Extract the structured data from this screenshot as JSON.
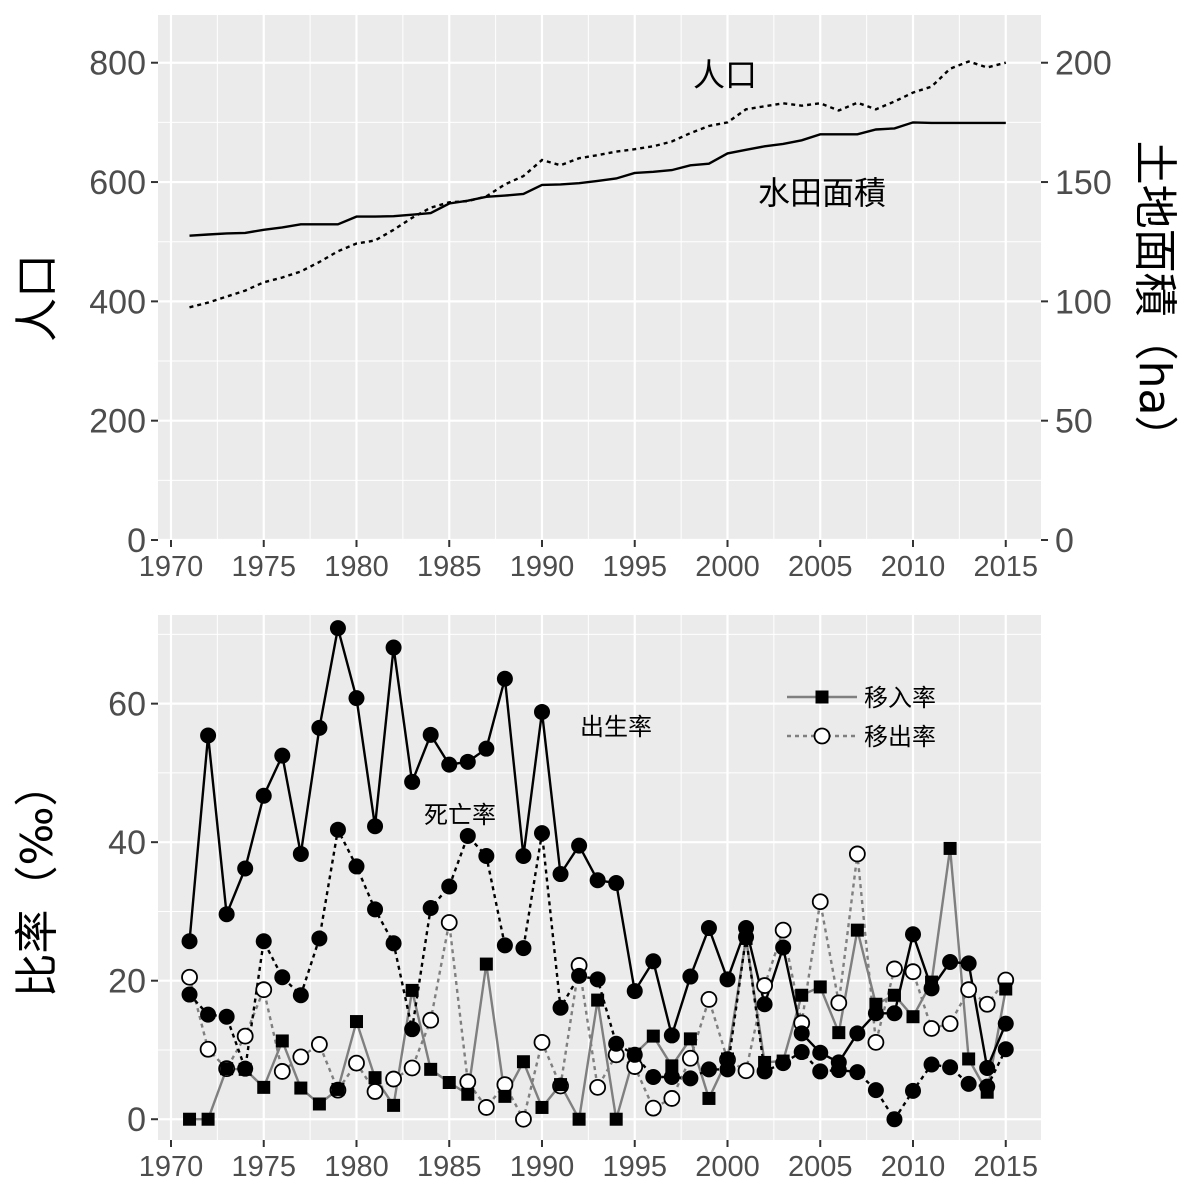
{
  "colors": {
    "panel_bg": "#ebebeb",
    "grid": "#ffffff",
    "tick_text": "#4d4d4d",
    "black": "#000000",
    "gray": "#7f7f7f"
  },
  "chart_data": [
    {
      "type": "line",
      "x_ticks": [
        "1970",
        "1975",
        "1980",
        "1985",
        "1990",
        "1995",
        "2000",
        "2005",
        "2010",
        "2015"
      ],
      "y_left_label": "人口",
      "y_left_ticks": [
        "0",
        "200",
        "400",
        "600",
        "800"
      ],
      "y_left_lim": [
        0,
        880
      ],
      "y_right_label": "土地面積（ha）",
      "y_right_ticks": [
        "0",
        "50",
        "100",
        "150",
        "200"
      ],
      "y_right_lim": [
        0,
        220
      ],
      "x_lim": [
        1969.3,
        1967.9
      ],
      "grid": true,
      "annotations": [
        {
          "text": "人口"
        },
        {
          "text": "水田面積"
        }
      ],
      "series": [
        {
          "name": "人口",
          "axis": "left",
          "style": "dotted",
          "x": [
            1971,
            1972,
            1973,
            1974,
            1975,
            1976,
            1977,
            1978,
            1979,
            1980,
            1981,
            1982,
            1983,
            1984,
            1985,
            1986,
            1987,
            1988,
            1989,
            1990,
            1991,
            1992,
            1993,
            1994,
            1995,
            1996,
            1997,
            1998,
            1999,
            2000,
            2001,
            2002,
            2003,
            2004,
            2005,
            2006,
            2007,
            2008,
            2009,
            2010,
            2011,
            2012,
            2013,
            2014,
            2015
          ],
          "values": [
            390,
            398,
            408,
            418,
            432,
            440,
            450,
            466,
            484,
            497,
            502,
            520,
            540,
            557,
            566,
            568,
            576,
            596,
            610,
            637,
            628,
            640,
            645,
            651,
            655,
            660,
            668,
            682,
            694,
            700,
            722,
            727,
            732,
            728,
            732,
            720,
            733,
            722,
            735,
            750,
            760,
            790,
            802,
            792,
            800
          ]
        },
        {
          "name": "水田面積",
          "axis": "right",
          "style": "solid",
          "x": [
            1971,
            1972,
            1973,
            1974,
            1975,
            1976,
            1977,
            1978,
            1979,
            1980,
            1981,
            1982,
            1983,
            1984,
            1985,
            1986,
            1987,
            1988,
            1989,
            1990,
            1991,
            1992,
            1993,
            1994,
            1995,
            1996,
            1997,
            1998,
            1999,
            2000,
            2001,
            2002,
            2003,
            2004,
            2005,
            2006,
            2007,
            2008,
            2009,
            2010,
            2011,
            2012,
            2013,
            2014,
            2015
          ],
          "values": [
            127.5,
            128,
            128.5,
            128.7,
            130,
            131,
            132.3,
            132.3,
            132.3,
            135.5,
            135.5,
            135.7,
            136.3,
            137,
            141,
            142.2,
            143.8,
            144.3,
            145,
            148.8,
            149,
            149.5,
            150.5,
            151.5,
            153.8,
            154.3,
            155,
            157,
            157.7,
            162,
            163.5,
            165,
            166,
            167.5,
            170,
            170,
            170,
            172,
            172.5,
            175,
            174.8,
            174.8,
            174.8,
            174.8,
            174.8
          ]
        }
      ]
    },
    {
      "type": "line",
      "x_ticks": [
        "1970",
        "1975",
        "1980",
        "1985",
        "1990",
        "1995",
        "2000",
        "2005",
        "2010",
        "2015"
      ],
      "y_label": "比率（‰）",
      "y_ticks": [
        "0",
        "20",
        "40",
        "60"
      ],
      "y_lim": [
        -3,
        72.8
      ],
      "x_lim": [
        1969.3,
        2016.9
      ],
      "grid": true,
      "legend_position": "top-right",
      "legend": [
        {
          "label": "移入率",
          "line": "solid-gray",
          "marker": "filled-square"
        },
        {
          "label": "移出率",
          "line": "dotted-gray",
          "marker": "open-circle"
        }
      ],
      "annotations": [
        {
          "text": "出生率"
        },
        {
          "text": "死亡率"
        }
      ],
      "series": [
        {
          "name": "出生率",
          "style": "solid-black",
          "marker": "filled-circle",
          "x": [
            1971,
            1972,
            1973,
            1974,
            1975,
            1976,
            1977,
            1978,
            1979,
            1980,
            1981,
            1982,
            1983,
            1984,
            1985,
            1986,
            1987,
            1988,
            1989,
            1990,
            1991,
            1992,
            1993,
            1994,
            1995,
            1996,
            1997,
            1998,
            1999,
            2000,
            2001,
            2002,
            2003,
            2004,
            2005,
            2006,
            2007,
            2008,
            2009,
            2010,
            2011,
            2012,
            2013,
            2014,
            2015
          ],
          "values": [
            25.7,
            55.4,
            29.6,
            36.2,
            46.7,
            52.5,
            38.3,
            56.5,
            70.9,
            60.8,
            42.3,
            68.1,
            48.7,
            55.5,
            51.2,
            51.6,
            53.5,
            63.6,
            38,
            58.8,
            35.4,
            39.5,
            34.5,
            34.1,
            18.5,
            22.8,
            12.1,
            20.6,
            27.6,
            20.2,
            27.6,
            16.6,
            24.8,
            12.4,
            9.6,
            8.2,
            12.4,
            15.3,
            15.3,
            26.7,
            18.9,
            22.7,
            22.5,
            7.4,
            13.8
          ]
        },
        {
          "name": "死亡率",
          "style": "dotted-black",
          "marker": "filled-circle",
          "x": [
            1971,
            1972,
            1973,
            1974,
            1975,
            1976,
            1977,
            1978,
            1979,
            1980,
            1981,
            1982,
            1983,
            1984,
            1985,
            1986,
            1987,
            1988,
            1989,
            1990,
            1991,
            1992,
            1993,
            1994,
            1995,
            1996,
            1997,
            1998,
            1999,
            2000,
            2001,
            2002,
            2003,
            2004,
            2005,
            2006,
            2007,
            2008,
            2009,
            2010,
            2011,
            2012,
            2013,
            2014,
            2015
          ],
          "values": [
            18.0,
            15.1,
            14.8,
            7.3,
            25.7,
            20.5,
            17.9,
            26.1,
            41.8,
            36.5,
            30.3,
            25.4,
            13.0,
            30.5,
            33.6,
            40.9,
            38.0,
            25.1,
            24.7,
            41.3,
            16.1,
            20.7,
            20.2,
            10.9,
            9.3,
            6.1,
            6.1,
            5.9,
            7.2,
            7.2,
            26.3,
            6.9,
            8.1,
            9.7,
            6.9,
            7.1,
            6.8,
            4.2,
            0,
            4.1,
            7.9,
            7.5,
            5.1,
            4.7,
            10.1
          ]
        },
        {
          "name": "移入率",
          "style": "solid-gray",
          "marker": "filled-square",
          "x": [
            1971,
            1972,
            1973,
            1974,
            1975,
            1976,
            1977,
            1978,
            1979,
            1980,
            1981,
            1982,
            1983,
            1984,
            1985,
            1986,
            1987,
            1988,
            1989,
            1990,
            1991,
            1992,
            1993,
            1994,
            1995,
            1996,
            1997,
            1998,
            1999,
            2000,
            2001,
            2002,
            2003,
            2004,
            2005,
            2006,
            2007,
            2008,
            2009,
            2010,
            2011,
            2012,
            2013,
            2014,
            2015
          ],
          "values": [
            0,
            0,
            7.3,
            7.2,
            4.6,
            11.3,
            4.5,
            2.2,
            4.3,
            14.1,
            6.0,
            2.0,
            18.6,
            7.2,
            5.3,
            3.6,
            22.4,
            3.3,
            8.3,
            1.7,
            5.0,
            0,
            17.2,
            0,
            9.4,
            12.0,
            7.7,
            11.6,
            3.0,
            8.7,
            26.1,
            8.2,
            8.4,
            17.9,
            19.1,
            12.5,
            27.3,
            16.6,
            17.9,
            14.8,
            19.8,
            39.1,
            8.7,
            3.9,
            18.8
          ]
        },
        {
          "name": "移出率",
          "style": "dotted-gray",
          "marker": "open-circle",
          "x": [
            1971,
            1972,
            1973,
            1974,
            1975,
            1976,
            1977,
            1978,
            1979,
            1980,
            1981,
            1982,
            1983,
            1984,
            1985,
            1986,
            1987,
            1988,
            1989,
            1990,
            1991,
            1992,
            1993,
            1994,
            1995,
            1996,
            1997,
            1998,
            1999,
            2000,
            2001,
            2002,
            2003,
            2004,
            2005,
            2006,
            2007,
            2008,
            2009,
            2010,
            2011,
            2012,
            2013,
            2014,
            2015
          ],
          "values": [
            20.5,
            10.1,
            7.3,
            12.0,
            18.7,
            6.9,
            9.0,
            10.8,
            4.2,
            8.1,
            4.0,
            5.8,
            7.4,
            14.3,
            28.4,
            5.4,
            1.7,
            5.0,
            0,
            11.1,
            4.8,
            22.2,
            4.6,
            9.3,
            7.6,
            1.6,
            3.0,
            8.8,
            17.3,
            8.6,
            7.0,
            19.3,
            27.3,
            13.9,
            31.4,
            16.8,
            38.3,
            11.1,
            21.7,
            21.3,
            13.1,
            13.8,
            18.7,
            16.6,
            20.1
          ]
        }
      ]
    }
  ]
}
